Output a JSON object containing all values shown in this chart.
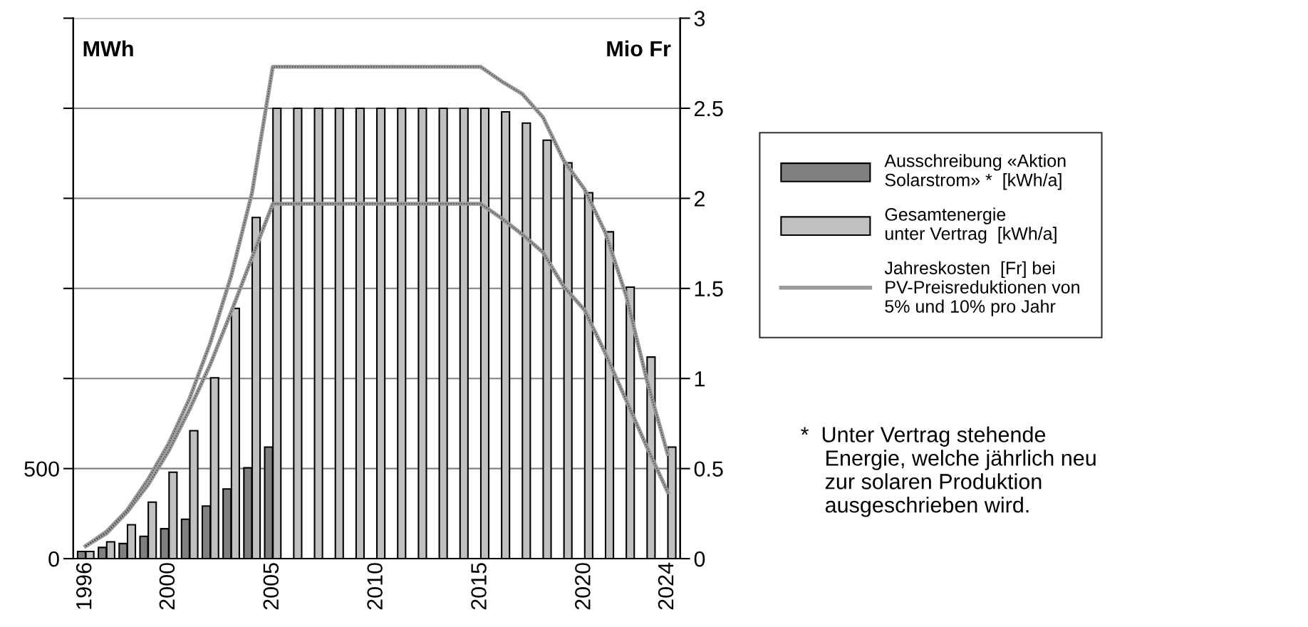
{
  "chart_data": {
    "type": "bar",
    "categories": [
      "1996",
      null,
      null,
      null,
      "2000",
      null,
      null,
      null,
      null,
      "2005",
      null,
      null,
      null,
      null,
      "2010",
      null,
      null,
      null,
      null,
      "2015",
      null,
      null,
      null,
      null,
      "2020",
      null,
      null,
      null,
      "2024"
    ],
    "series": [
      {
        "name": "Ausschreibung «Aktion\nSolarstrom» *  [kWh/a]",
        "color": "#808080",
        "values": [
          40,
          62,
          84,
          124,
          166,
          219,
          292,
          387,
          504,
          619,
          null,
          null,
          null,
          null,
          null,
          null,
          null,
          null,
          null,
          null,
          null,
          null,
          null,
          null,
          null,
          null,
          null,
          null,
          null
        ]
      },
      {
        "name": "Gesamtenergie\nunter Vertrag  [kWh/a]",
        "color": "#c0c0c0",
        "values": [
          40,
          93,
          188,
          314,
          480,
          710,
          1004,
          1389,
          1894,
          2500,
          2500,
          2500,
          2500,
          2500,
          2500,
          2500,
          2500,
          2500,
          2500,
          2500,
          2480,
          2418,
          2323,
          2197,
          2031,
          1814,
          1507,
          1119,
          619
        ]
      },
      {
        "name": "Jahreskosten  [Fr] bei\nPV-Preisreduktionen von\n5% und 10% pro Jahr",
        "type": "line",
        "axis": "y2",
        "color": "#9a9a9a",
        "values": [
          0.07,
          0.15,
          0.27,
          0.44,
          0.64,
          0.89,
          1.2,
          1.57,
          2.03,
          2.73,
          2.73,
          2.73,
          2.73,
          2.73,
          2.73,
          2.73,
          2.73,
          2.73,
          2.73,
          2.73,
          2.65,
          2.58,
          2.45,
          2.21,
          2.05,
          1.81,
          1.46,
          0.99,
          0.58
        ]
      },
      {
        "type": "line",
        "axis": "y2",
        "color": "#9a9a9a",
        "values": [
          0.07,
          0.14,
          0.26,
          0.41,
          0.6,
          0.83,
          1.08,
          1.37,
          1.67,
          1.97,
          1.97,
          1.97,
          1.97,
          1.97,
          1.97,
          1.97,
          1.97,
          1.97,
          1.97,
          1.97,
          1.89,
          1.8,
          1.7,
          1.51,
          1.38,
          1.14,
          0.88,
          0.62,
          0.37
        ]
      }
    ],
    "ylabel": "MWh",
    "y2label": "Mio Fr",
    "ylim": [
      0,
      3000
    ],
    "yticks": [
      0,
      500,
      {
        "value": 1000,
        "label": null
      },
      {
        "value": 1500,
        "label": null
      },
      {
        "value": 2000,
        "label": null
      },
      {
        "value": 2500,
        "label": null
      },
      {
        "value": 3000,
        "label": null
      }
    ],
    "y2lim": [
      0,
      3
    ],
    "y2ticks": [
      0,
      0.5,
      1,
      1.5,
      2,
      2.5,
      3
    ],
    "grid": "y",
    "legend": "right",
    "line_style": "solid",
    "annotations": [
      "*  Unter Vertrag stehende\n    Energie, welche jährlich neu\n    zur solaren Produktion\n    ausgeschrieben wird."
    ]
  }
}
